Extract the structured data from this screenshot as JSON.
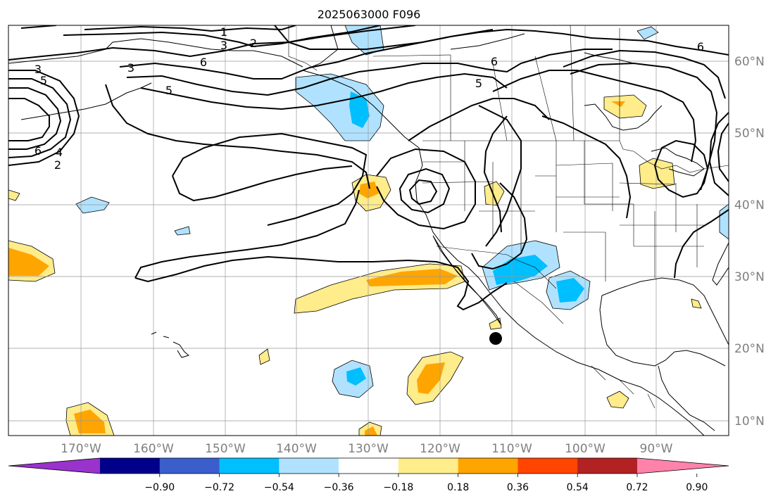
{
  "title": "2025063000 F096",
  "map": {
    "lon_labels": [
      "170°W",
      "160°W",
      "150°W",
      "140°W",
      "130°W",
      "120°W",
      "110°W",
      "100°W",
      "90°W"
    ],
    "lat_labels": [
      "60°N",
      "50°N",
      "40°N",
      "30°N",
      "20°N",
      "10°N"
    ],
    "grid_color": "#999999",
    "label_color": "#7f7f7f"
  },
  "contour_labels": [
    "1",
    "2",
    "3",
    "6",
    "5",
    "6",
    "6",
    "4",
    "2",
    "3",
    "5",
    "3",
    "5",
    "6"
  ],
  "colorbar": {
    "ticks": [
      "−0.90",
      "−0.72",
      "−0.54",
      "−0.36",
      "−0.18",
      "0.18",
      "0.36",
      "0.54",
      "0.72",
      "0.90"
    ],
    "colors": [
      "#9a32cd",
      "#00008b",
      "#3a5fcd",
      "#00bfff",
      "#b0e2ff",
      "#ffffff",
      "#ffec8b",
      "#ffa500",
      "#ff4500",
      "#b22222",
      "#ff82ab"
    ]
  }
}
